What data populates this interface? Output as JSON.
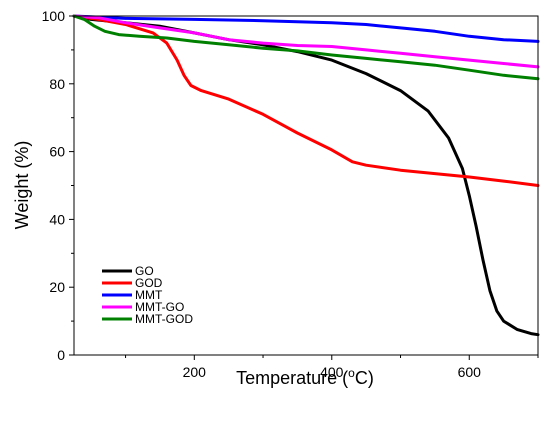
{
  "chart_data": {
    "type": "line",
    "xlabel_prefix": "Temperature (",
    "xlabel_sup": "o",
    "xlabel_suffix": "C)",
    "ylabel": "Weight (%)",
    "xlim": [
      25,
      700
    ],
    "ylim": [
      0,
      100
    ],
    "x_ticks": [
      200,
      400,
      600
    ],
    "y_ticks": [
      0,
      20,
      40,
      60,
      80,
      100
    ],
    "legend_position": "lower-left",
    "series": [
      {
        "name": "GO",
        "color": "#000000",
        "points": [
          [
            25,
            100
          ],
          [
            50,
            99
          ],
          [
            100,
            98
          ],
          [
            150,
            97
          ],
          [
            200,
            95
          ],
          [
            250,
            93
          ],
          [
            300,
            91.5
          ],
          [
            350,
            89.5
          ],
          [
            400,
            87
          ],
          [
            450,
            83
          ],
          [
            500,
            78
          ],
          [
            540,
            72
          ],
          [
            570,
            64
          ],
          [
            590,
            55
          ],
          [
            600,
            47
          ],
          [
            610,
            38
          ],
          [
            620,
            28
          ],
          [
            630,
            19
          ],
          [
            640,
            13
          ],
          [
            650,
            10
          ],
          [
            670,
            7.5
          ],
          [
            690,
            6.3
          ],
          [
            700,
            6
          ]
        ]
      },
      {
        "name": "GOD",
        "color": "#ff0000",
        "points": [
          [
            25,
            100
          ],
          [
            60,
            99
          ],
          [
            100,
            97.5
          ],
          [
            140,
            95
          ],
          [
            160,
            92
          ],
          [
            175,
            87
          ],
          [
            185,
            82.5
          ],
          [
            195,
            79.5
          ],
          [
            210,
            78
          ],
          [
            250,
            75.5
          ],
          [
            300,
            71
          ],
          [
            350,
            65.5
          ],
          [
            400,
            60.5
          ],
          [
            430,
            57
          ],
          [
            450,
            56
          ],
          [
            500,
            54.5
          ],
          [
            550,
            53.5
          ],
          [
            600,
            52.5
          ],
          [
            650,
            51.3
          ],
          [
            700,
            50
          ]
        ]
      },
      {
        "name": "MMT",
        "color": "#0000ff",
        "points": [
          [
            25,
            100
          ],
          [
            100,
            99.3
          ],
          [
            200,
            99
          ],
          [
            300,
            98.6
          ],
          [
            400,
            98
          ],
          [
            450,
            97.5
          ],
          [
            500,
            96.5
          ],
          [
            550,
            95.5
          ],
          [
            600,
            94
          ],
          [
            650,
            93
          ],
          [
            700,
            92.5
          ]
        ]
      },
      {
        "name": "MMT-GO",
        "color": "#ff00ff",
        "points": [
          [
            25,
            100
          ],
          [
            60,
            99.5
          ],
          [
            100,
            98
          ],
          [
            150,
            96.5
          ],
          [
            200,
            95
          ],
          [
            250,
            93
          ],
          [
            300,
            92
          ],
          [
            350,
            91.3
          ],
          [
            400,
            91
          ],
          [
            450,
            90
          ],
          [
            500,
            89
          ],
          [
            550,
            88
          ],
          [
            600,
            87
          ],
          [
            650,
            86
          ],
          [
            700,
            85
          ]
        ]
      },
      {
        "name": "MMT-GOD",
        "color": "#008000",
        "points": [
          [
            25,
            100
          ],
          [
            40,
            99
          ],
          [
            55,
            97
          ],
          [
            70,
            95.5
          ],
          [
            90,
            94.5
          ],
          [
            120,
            94
          ],
          [
            160,
            93.5
          ],
          [
            200,
            92.5
          ],
          [
            250,
            91.5
          ],
          [
            300,
            90.5
          ],
          [
            350,
            89.7
          ],
          [
            400,
            88.5
          ],
          [
            450,
            87.5
          ],
          [
            500,
            86.5
          ],
          [
            550,
            85.5
          ],
          [
            600,
            84
          ],
          [
            650,
            82.5
          ],
          [
            700,
            81.5
          ]
        ]
      }
    ]
  }
}
